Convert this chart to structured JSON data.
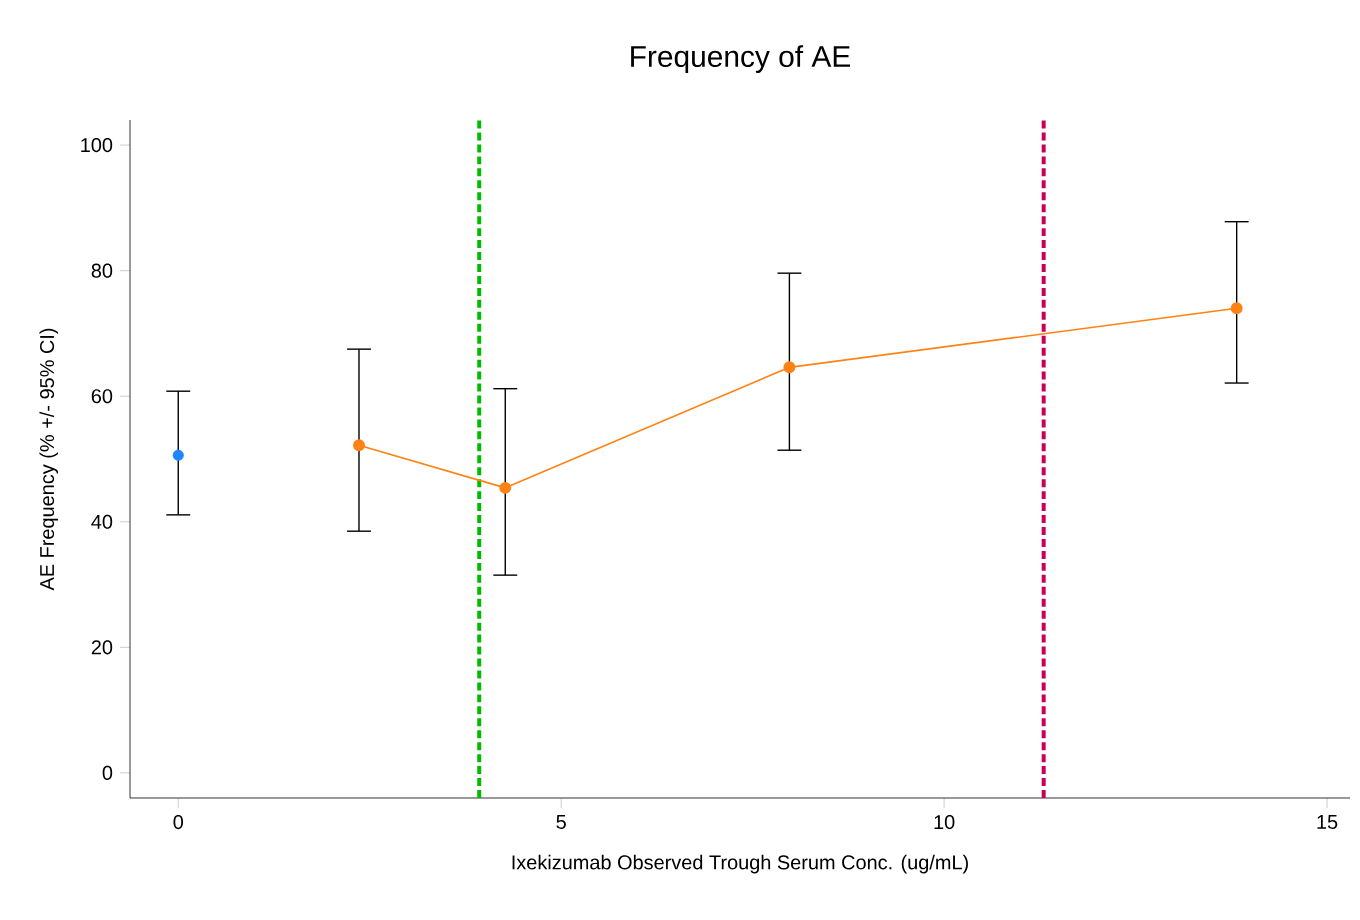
{
  "chart_data": {
    "type": "scatter",
    "title": "Frequency of AE",
    "xlabel": "Ixekizumab Observed Trough Serum Conc. (ug/mL)",
    "ylabel": "AE Frequency (% +/- 95% CI)",
    "series": [
      {
        "color": "#1f85ff",
        "x": [
          0
        ],
        "values": [
          50.6
        ],
        "errors": [
          [
            41.1,
            60.8
          ]
        ]
      },
      {
        "type": "line",
        "color": "#ff8214",
        "x": [
          2.36,
          4.27,
          7.98,
          13.82
        ],
        "values": [
          52.2,
          45.4,
          64.6,
          74.0
        ],
        "errors": [
          [
            38.5,
            67.5
          ],
          [
            31.5,
            61.2
          ],
          [
            51.4,
            79.6
          ],
          [
            62.1,
            87.8
          ]
        ]
      }
    ],
    "marker": "circle",
    "grid": false,
    "xlim": [
      -0.63,
      15.3
    ],
    "ylim": [
      -4,
      104
    ],
    "xticks": [
      0,
      5,
      10,
      15
    ],
    "yticks": [
      0,
      20,
      40,
      60,
      80,
      100
    ],
    "ref_lines": [
      {
        "axis": "x",
        "value": 3.93,
        "color": "#00bb00",
        "line_style": "dashed"
      },
      {
        "axis": "x",
        "value": 11.3,
        "color": "#c8005a",
        "line_style": "dashed"
      }
    ]
  }
}
